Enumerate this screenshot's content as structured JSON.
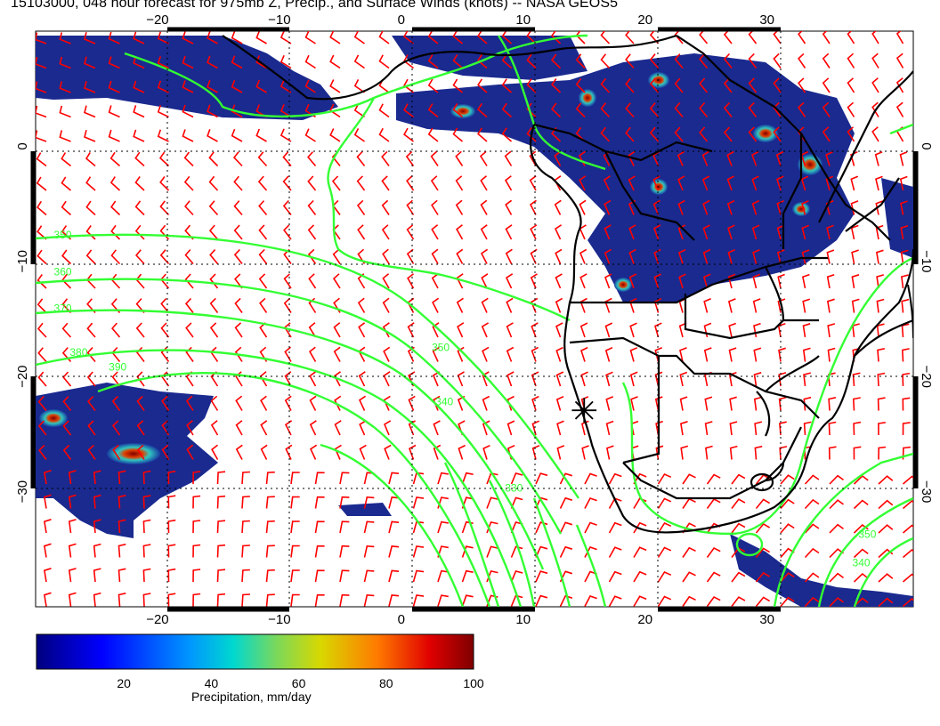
{
  "title": "15103000, 048 hour forecast for 975mb Z, Precip., and Surface Winds (knots) -- NASA GEOS5",
  "map": {
    "lon_range": [
      -30,
      42
    ],
    "lat_range": [
      -40,
      10
    ],
    "lon_ticks": [
      {
        "value": -20,
        "label": "−20"
      },
      {
        "value": -10,
        "label": "−10"
      },
      {
        "value": 0,
        "label": "0"
      },
      {
        "value": 10,
        "label": "10"
      },
      {
        "value": 20,
        "label": "20"
      },
      {
        "value": 30,
        "label": "30"
      }
    ],
    "lat_ticks": [
      {
        "value": 0,
        "label": "0"
      },
      {
        "value": -10,
        "label": "−10"
      },
      {
        "value": -20,
        "label": "−20"
      },
      {
        "value": -30,
        "label": "−30"
      }
    ],
    "contour_labels": [
      {
        "text": "350",
        "lon": -28.5,
        "lat": -8
      },
      {
        "text": "360",
        "lon": -28.5,
        "lat": -11.2
      },
      {
        "text": "370",
        "lon": -28.5,
        "lat": -14.4
      },
      {
        "text": "380",
        "lon": -27.2,
        "lat": -18.2
      },
      {
        "text": "390",
        "lon": -24,
        "lat": -19.5
      },
      {
        "text": "350",
        "lon": 2.5,
        "lat": -17.8
      },
      {
        "text": "340",
        "lon": 2.8,
        "lat": -22.5
      },
      {
        "text": "330",
        "lon": 8.5,
        "lat": -30
      },
      {
        "text": "350",
        "lon": 37.5,
        "lat": -34
      },
      {
        "text": "340",
        "lon": 37,
        "lat": -36.5
      }
    ],
    "marker": {
      "symbol": "✳",
      "lon": 15,
      "lat": -23
    },
    "colors": {
      "coast": "#000000",
      "contour": "#33ff33",
      "wind": "#ff0000",
      "precip_low": "#1a2a8f",
      "precip_high": "#8b0000"
    }
  },
  "colorbar": {
    "min": 0,
    "max": 100,
    "ticks": [
      "20",
      "40",
      "60",
      "80",
      "100"
    ],
    "label": "Precipitation, mm/day"
  }
}
